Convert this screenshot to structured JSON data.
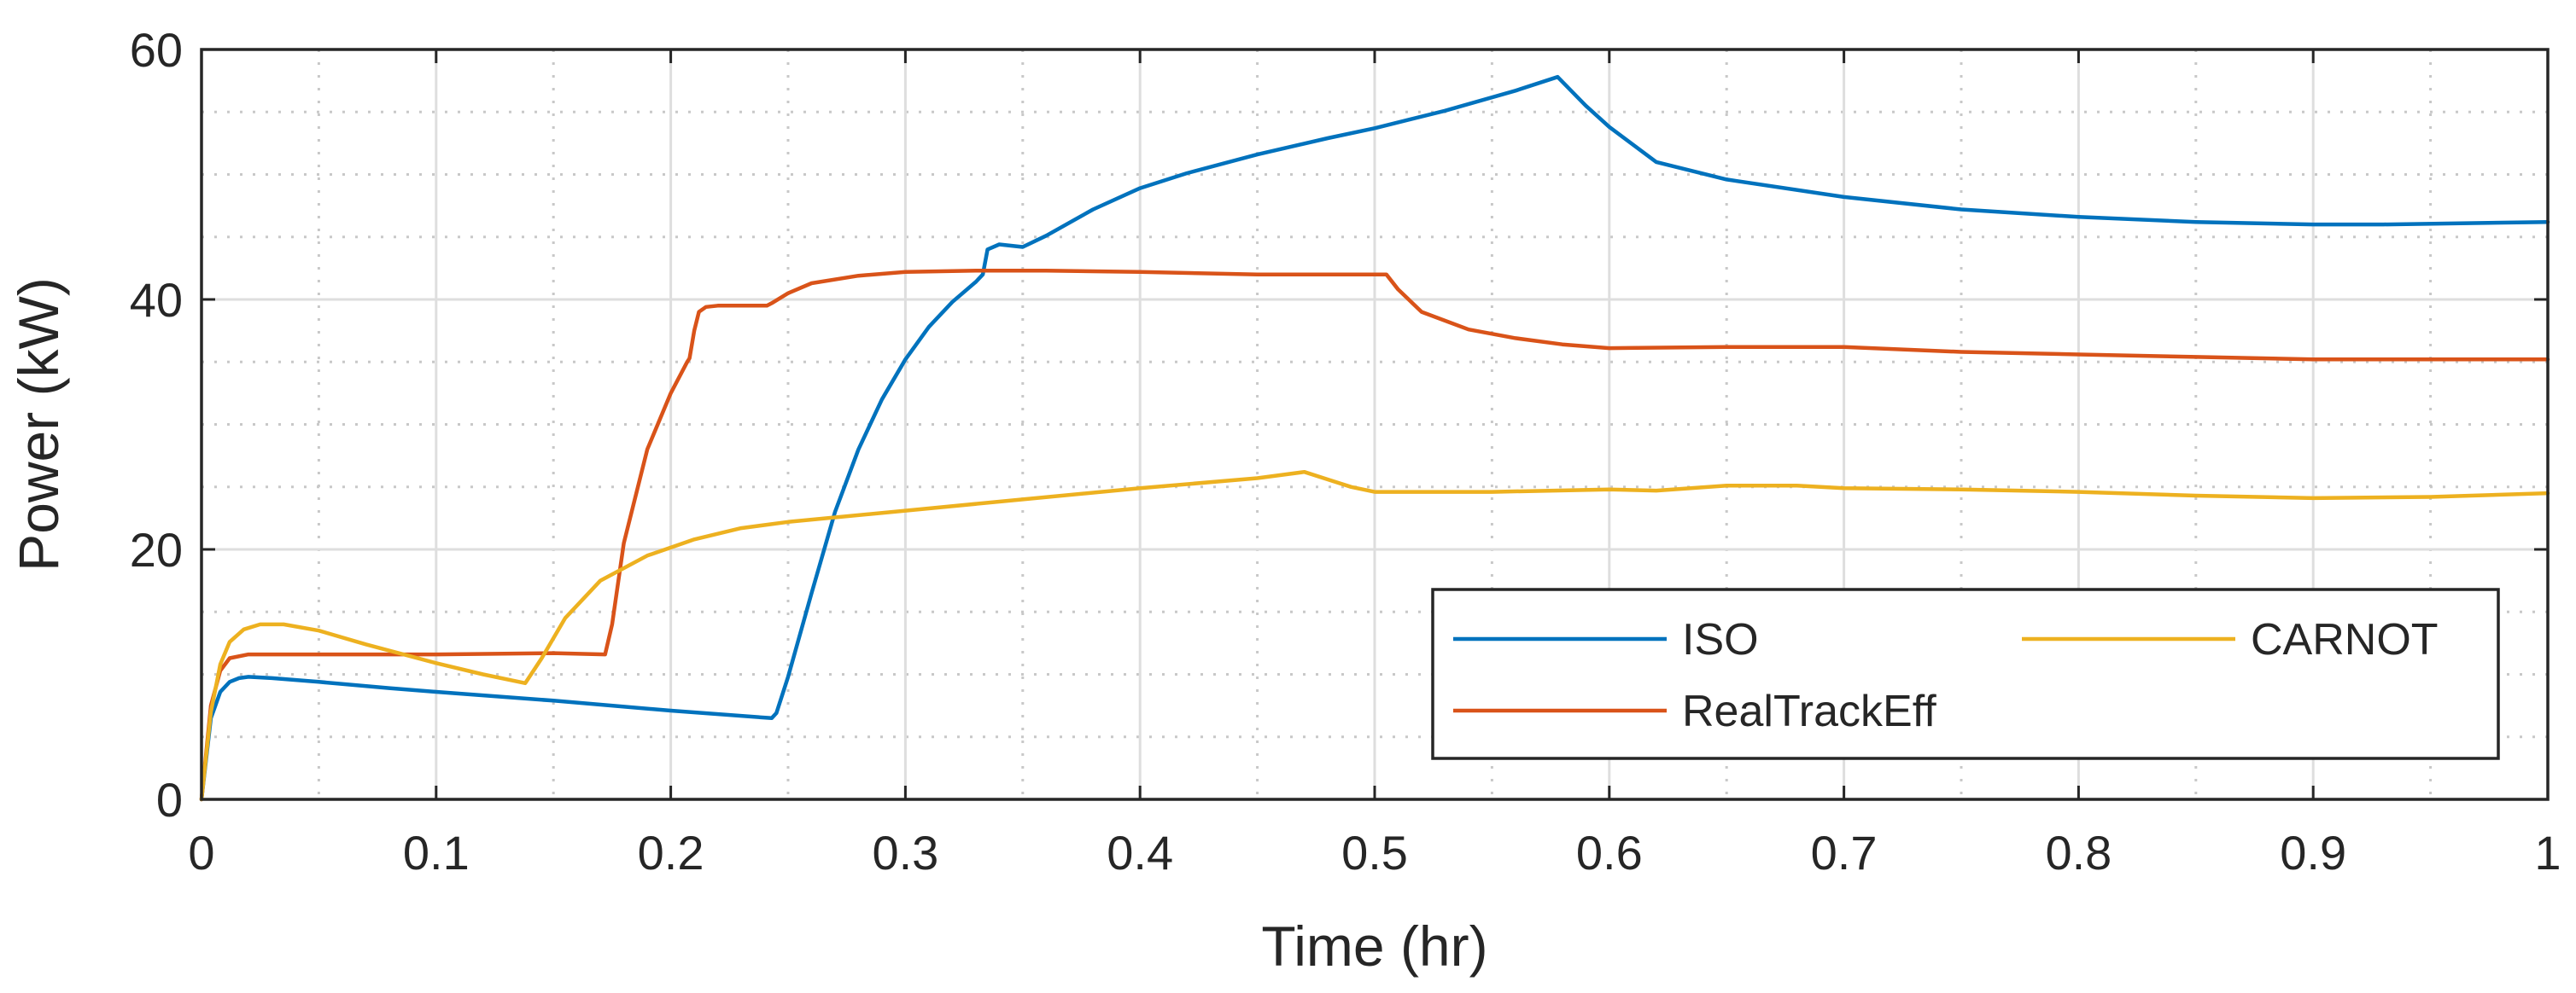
{
  "chart_data": {
    "type": "line",
    "title": "",
    "xlabel": "Time (hr)",
    "ylabel": "Power (kW)",
    "xlim": [
      0,
      1
    ],
    "ylim": [
      0,
      60
    ],
    "x_ticks": [
      0,
      0.1,
      0.2,
      0.3,
      0.4,
      0.5,
      0.6,
      0.7,
      0.8,
      0.9,
      1
    ],
    "x_tick_labels": [
      "0",
      "0.1",
      "0.2",
      "0.3",
      "0.4",
      "0.5",
      "0.6",
      "0.7",
      "0.8",
      "0.9",
      "1"
    ],
    "y_ticks": [
      0,
      20,
      40,
      60
    ],
    "y_tick_labels": [
      "0",
      "20",
      "40",
      "60"
    ],
    "grid": true,
    "minor_grid": true,
    "legend_position": "bottom-right",
    "series": [
      {
        "name": "ISO",
        "color": "#0072BD",
        "x": [
          0,
          0.004,
          0.008,
          0.012,
          0.016,
          0.02,
          0.03,
          0.05,
          0.08,
          0.1,
          0.15,
          0.2,
          0.243,
          0.245,
          0.25,
          0.26,
          0.27,
          0.28,
          0.29,
          0.3,
          0.31,
          0.32,
          0.33,
          0.333,
          0.335,
          0.34,
          0.35,
          0.36,
          0.38,
          0.4,
          0.42,
          0.45,
          0.48,
          0.5,
          0.53,
          0.56,
          0.578,
          0.59,
          0.6,
          0.62,
          0.65,
          0.7,
          0.75,
          0.8,
          0.85,
          0.9,
          0.93,
          1.0
        ],
        "values": [
          0,
          6.5,
          8.6,
          9.4,
          9.7,
          9.8,
          9.7,
          9.4,
          8.9,
          8.6,
          7.9,
          7.1,
          6.5,
          6.9,
          9.8,
          16.5,
          23.0,
          28.0,
          32.0,
          35.2,
          37.8,
          39.8,
          41.4,
          42.0,
          44.0,
          44.4,
          44.2,
          45.1,
          47.2,
          48.9,
          50.1,
          51.6,
          52.9,
          53.7,
          55.1,
          56.7,
          57.8,
          55.5,
          53.8,
          51.0,
          49.6,
          48.2,
          47.2,
          46.6,
          46.2,
          46.0,
          46.0,
          46.2
        ]
      },
      {
        "name": "RealTrackEff",
        "color": "#D95319",
        "x": [
          0,
          0.004,
          0.008,
          0.012,
          0.02,
          0.05,
          0.1,
          0.15,
          0.172,
          0.175,
          0.18,
          0.19,
          0.2,
          0.207,
          0.208,
          0.21,
          0.212,
          0.215,
          0.22,
          0.23,
          0.241,
          0.243,
          0.25,
          0.26,
          0.28,
          0.3,
          0.33,
          0.36,
          0.4,
          0.45,
          0.505,
          0.51,
          0.52,
          0.54,
          0.56,
          0.58,
          0.6,
          0.65,
          0.7,
          0.75,
          0.8,
          0.85,
          0.9,
          1.0
        ],
        "values": [
          0,
          7.5,
          10.3,
          11.3,
          11.6,
          11.6,
          11.6,
          11.7,
          11.6,
          14.0,
          20.5,
          28.0,
          32.5,
          35.0,
          35.3,
          37.5,
          39.0,
          39.4,
          39.5,
          39.5,
          39.5,
          39.7,
          40.5,
          41.3,
          41.9,
          42.2,
          42.3,
          42.3,
          42.2,
          42.0,
          42.0,
          40.8,
          39.0,
          37.6,
          36.9,
          36.4,
          36.1,
          36.2,
          36.2,
          35.8,
          35.6,
          35.4,
          35.2,
          35.2
        ]
      },
      {
        "name": "CARNOT",
        "color": "#EDB120",
        "x": [
          0,
          0.004,
          0.008,
          0.012,
          0.018,
          0.025,
          0.035,
          0.05,
          0.07,
          0.1,
          0.12,
          0.138,
          0.145,
          0.155,
          0.17,
          0.19,
          0.21,
          0.23,
          0.25,
          0.3,
          0.35,
          0.4,
          0.45,
          0.47,
          0.48,
          0.49,
          0.5,
          0.55,
          0.6,
          0.62,
          0.65,
          0.68,
          0.7,
          0.75,
          0.8,
          0.85,
          0.9,
          0.95,
          1.0
        ],
        "values": [
          0,
          7.0,
          10.8,
          12.6,
          13.6,
          14.0,
          14.0,
          13.5,
          12.4,
          10.9,
          10.0,
          9.3,
          11.3,
          14.5,
          17.5,
          19.5,
          20.8,
          21.7,
          22.2,
          23.1,
          24.0,
          24.9,
          25.7,
          26.2,
          25.6,
          25.0,
          24.6,
          24.6,
          24.8,
          24.7,
          25.1,
          25.1,
          24.9,
          24.8,
          24.6,
          24.3,
          24.1,
          24.2,
          24.5
        ]
      }
    ]
  }
}
